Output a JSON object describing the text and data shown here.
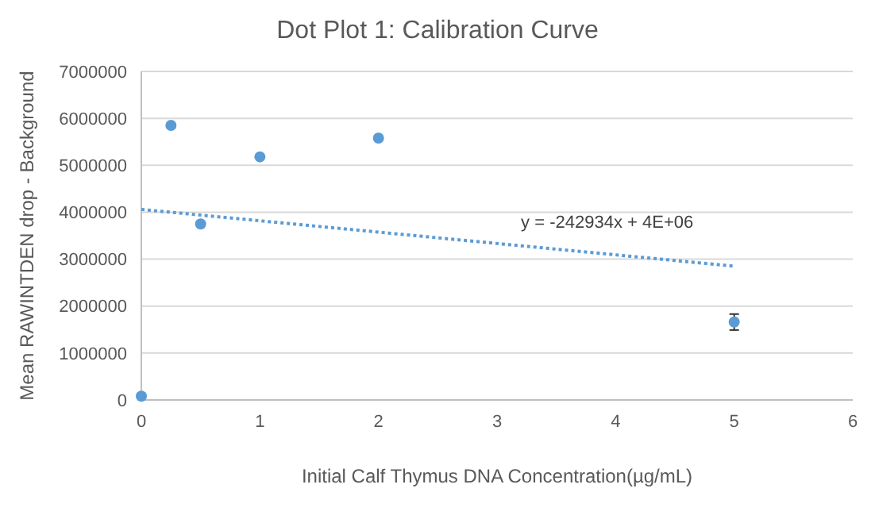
{
  "chart_data": {
    "type": "scatter",
    "title": "Dot Plot 1: Calibration Curve",
    "xlabel": "Initial Calf Thymus DNA Concentration(µg/mL)",
    "ylabel": "Mean RAWINTDEN drop - Background",
    "x": [
      0,
      0.25,
      0.5,
      1,
      2,
      5
    ],
    "series": [
      {
        "color": "#5b9bd5",
        "values": [
          80000,
          5850000,
          3750000,
          5180000,
          5580000,
          1660000
        ],
        "errors": [
          null,
          null,
          null,
          null,
          null,
          170000
        ],
        "marker": "circle"
      },
      {
        "type": "line",
        "x": [
          0,
          5
        ],
        "color": "#5b9bd5",
        "values": [
          4060000,
          2850000
        ],
        "line_style": "dotted"
      }
    ],
    "annotations": [
      "y = -242934x + 4E+06"
    ],
    "xlim": [
      0,
      6
    ],
    "xticks": [
      0,
      1,
      2,
      3,
      4,
      5,
      6
    ],
    "ylim": [
      0,
      7000000
    ],
    "yticks": [
      0,
      1000000,
      2000000,
      3000000,
      4000000,
      5000000,
      6000000,
      7000000
    ],
    "grid": "y"
  }
}
